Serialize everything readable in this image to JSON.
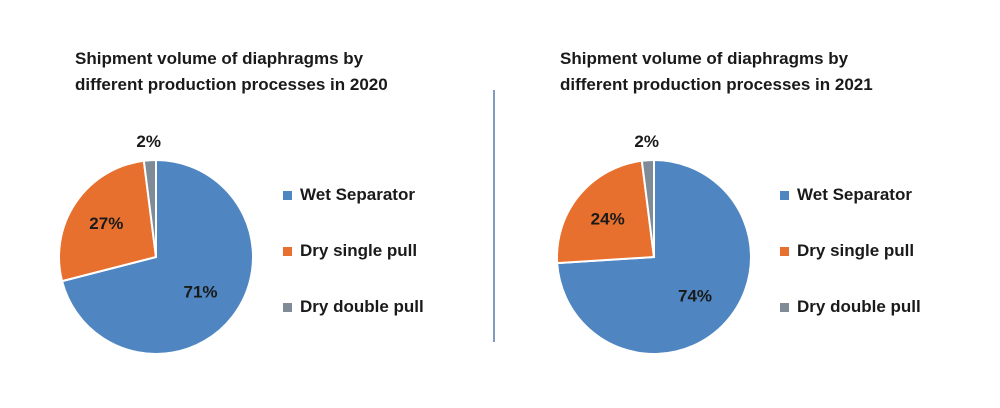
{
  "chart_data": [
    {
      "type": "pie",
      "title_lines": [
        "Shipment volume of diaphragms by",
        "different production processes in 2020"
      ],
      "categories": [
        "Wet Separator",
        "Dry single pull",
        "Dry double pull"
      ],
      "values": [
        71,
        27,
        2
      ],
      "labels": [
        "71%",
        "27%",
        "2%"
      ],
      "colors": [
        "#4f86c1",
        "#e8702e",
        "#7f8b96"
      ],
      "legend_position": "right"
    },
    {
      "type": "pie",
      "title_lines": [
        "Shipment volume of diaphragms by",
        "different production processes in 2021"
      ],
      "categories": [
        "Wet Separator",
        "Dry single pull",
        "Dry double pull"
      ],
      "values": [
        74,
        24,
        2
      ],
      "labels": [
        "74%",
        "24%",
        "2%"
      ],
      "colors": [
        "#4f86c1",
        "#e8702e",
        "#7f8b96"
      ],
      "legend_position": "right"
    }
  ]
}
